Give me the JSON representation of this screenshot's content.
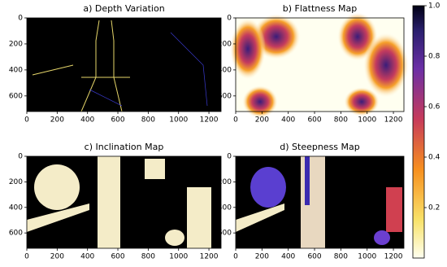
{
  "chart_data": [
    {
      "type": "image",
      "title": "a) Depth Variation",
      "xlim": [
        0,
        1280
      ],
      "ylim": [
        720,
        0
      ],
      "xticks": [
        0,
        200,
        400,
        600,
        800,
        1000,
        1200
      ],
      "yticks": [
        0,
        200,
        400,
        600
      ]
    },
    {
      "type": "image",
      "title": "b) Flattness Map",
      "xlim": [
        0,
        1280
      ],
      "ylim": [
        720,
        0
      ],
      "xticks": [
        0,
        200,
        400,
        600,
        800,
        1000,
        1200
      ],
      "yticks": [
        0,
        200,
        400,
        600
      ]
    },
    {
      "type": "image",
      "title": "c) Inclination Map",
      "xlim": [
        0,
        1280
      ],
      "ylim": [
        720,
        0
      ],
      "xticks": [
        0,
        200,
        400,
        600,
        800,
        1000,
        1200
      ],
      "yticks": [
        0,
        200,
        400,
        600
      ]
    },
    {
      "type": "image",
      "title": "d) Steepness Map",
      "xlim": [
        0,
        1280
      ],
      "ylim": [
        720,
        0
      ],
      "xticks": [
        0,
        200,
        400,
        600,
        800,
        1000,
        1200
      ],
      "yticks": [
        0,
        200,
        400,
        600
      ]
    }
  ],
  "colorbar": {
    "ylim": [
      0,
      1
    ],
    "yticks": [
      0.2,
      0.4,
      0.6,
      0.8,
      {
        "value": 1,
        "label": "1.0"
      }
    ]
  }
}
